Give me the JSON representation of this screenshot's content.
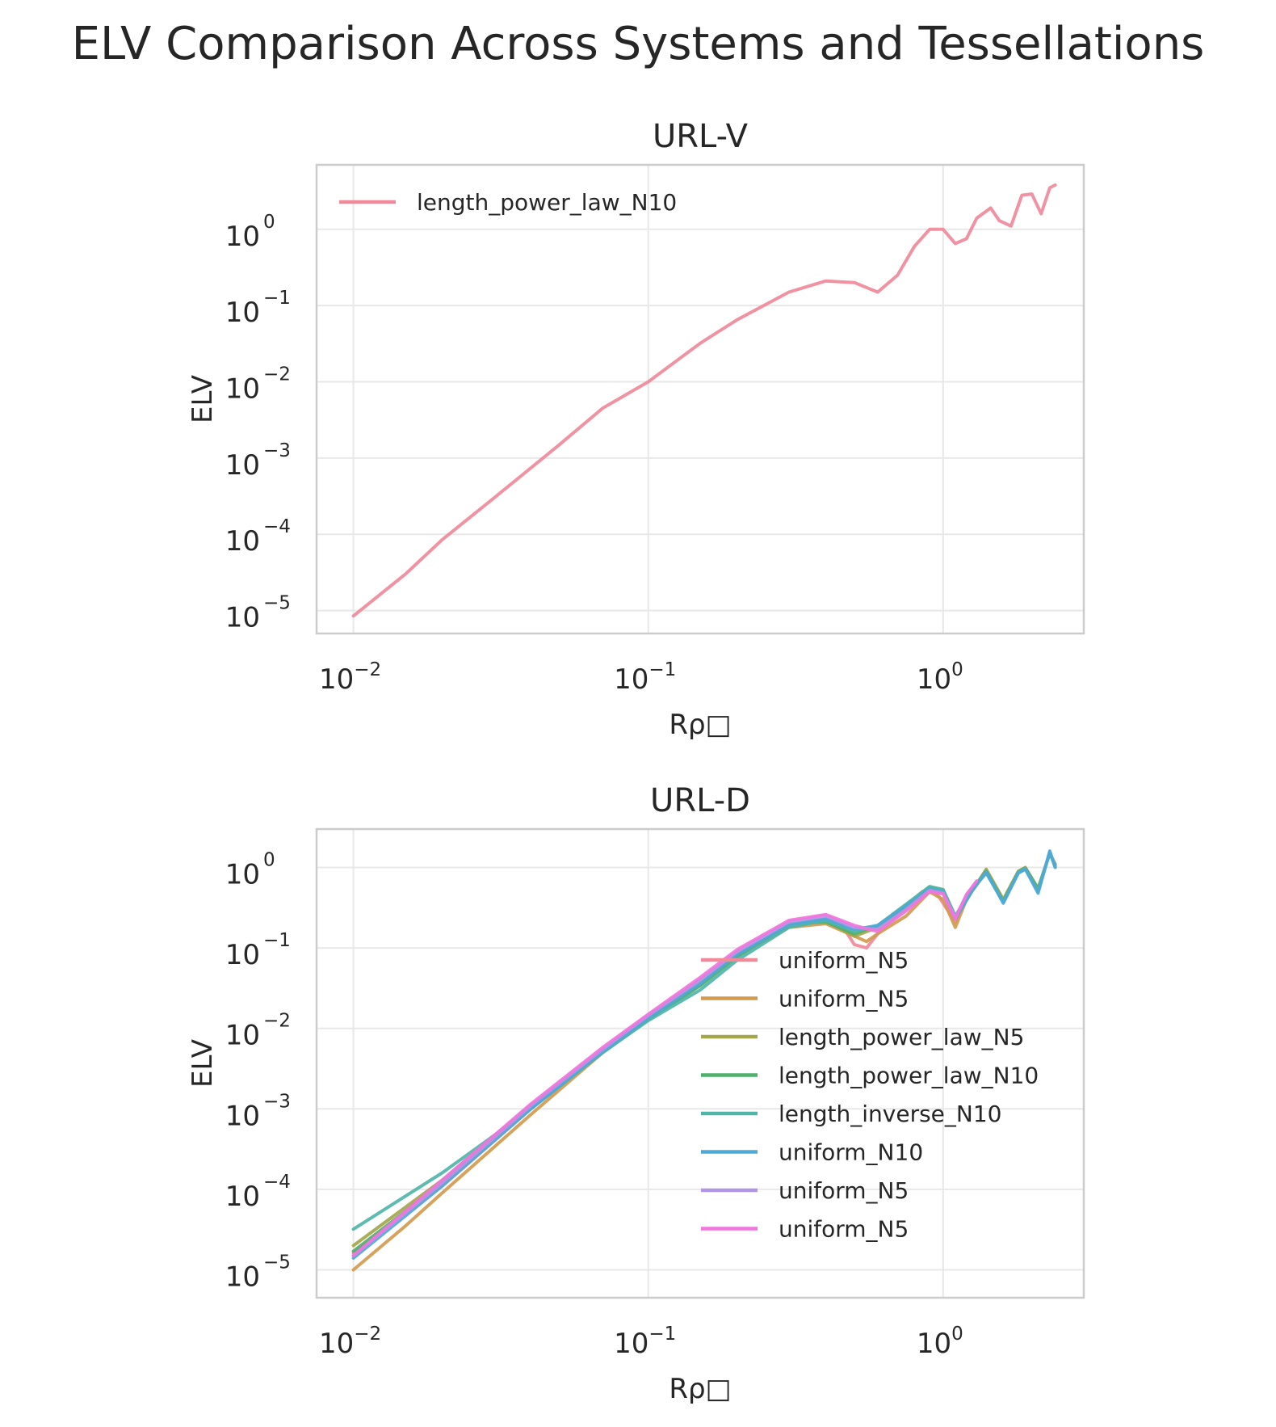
{
  "title": "ELV Comparison Across Systems and Tessellations",
  "chart_data": [
    {
      "type": "line",
      "title": "URL-V",
      "xlabel": "Rρ□",
      "ylabel": "ELV",
      "xscale": "log",
      "yscale": "log",
      "xlim": [
        0.0075,
        3.0
      ],
      "ylim": [
        5e-06,
        7
      ],
      "x_ticks": [
        0.01,
        0.1,
        1
      ],
      "x_tick_labels": [
        {
          "base": "10",
          "exp": "−2"
        },
        {
          "base": "10",
          "exp": "−1"
        },
        {
          "base": "10",
          "exp": "0"
        }
      ],
      "y_ticks": [
        1e-05,
        0.0001,
        0.001,
        0.01,
        0.1,
        1
      ],
      "y_tick_labels": [
        {
          "base": "10",
          "exp": "−5"
        },
        {
          "base": "10",
          "exp": "−4"
        },
        {
          "base": "10",
          "exp": "−3"
        },
        {
          "base": "10",
          "exp": "−2"
        },
        {
          "base": "10",
          "exp": "−1"
        },
        {
          "base": "10",
          "exp": "0"
        }
      ],
      "grid": true,
      "legend_position": "top-left",
      "series": [
        {
          "name": "length_power_law_N10",
          "color": "#f0899a",
          "x": [
            0.01,
            0.015,
            0.02,
            0.03,
            0.05,
            0.07,
            0.1,
            0.15,
            0.2,
            0.3,
            0.4,
            0.5,
            0.6,
            0.7,
            0.8,
            0.9,
            1.0,
            1.1,
            1.2,
            1.3,
            1.45,
            1.55,
            1.7,
            1.85,
            2.0,
            2.15,
            2.3,
            2.4
          ],
          "y": [
            8.5e-06,
            3e-05,
            8.5e-05,
            0.0003,
            0.0015,
            0.0045,
            0.01,
            0.032,
            0.065,
            0.15,
            0.21,
            0.2,
            0.15,
            0.25,
            0.6,
            1.0,
            1.0,
            0.65,
            0.75,
            1.4,
            1.9,
            1.3,
            1.1,
            2.8,
            2.9,
            1.6,
            3.5,
            3.8
          ]
        }
      ]
    },
    {
      "type": "line",
      "title": "URL-D",
      "xlabel": "Rρ□",
      "ylabel": "ELV",
      "xscale": "log",
      "yscale": "log",
      "xlim": [
        0.0075,
        3.0
      ],
      "ylim": [
        4.5e-06,
        3
      ],
      "x_ticks": [
        0.01,
        0.1,
        1
      ],
      "x_tick_labels": [
        {
          "base": "10",
          "exp": "−2"
        },
        {
          "base": "10",
          "exp": "−1"
        },
        {
          "base": "10",
          "exp": "0"
        }
      ],
      "y_ticks": [
        1e-05,
        0.0001,
        0.001,
        0.01,
        0.1,
        1
      ],
      "y_tick_labels": [
        {
          "base": "10",
          "exp": "−5"
        },
        {
          "base": "10",
          "exp": "−4"
        },
        {
          "base": "10",
          "exp": "−3"
        },
        {
          "base": "10",
          "exp": "−2"
        },
        {
          "base": "10",
          "exp": "−1"
        },
        {
          "base": "10",
          "exp": "0"
        }
      ],
      "grid": true,
      "legend_position": "lower-right",
      "series": [
        {
          "name": "uniform_N5",
          "color": "#f0899a",
          "x": [
            0.01,
            0.02,
            0.04,
            0.07,
            0.1,
            0.15,
            0.2,
            0.3,
            0.4,
            0.45,
            0.5,
            0.55,
            0.6,
            0.7,
            0.85,
            0.95,
            1.1,
            1.2,
            1.3
          ],
          "y": [
            1.6e-05,
            0.00011,
            0.001,
            0.0055,
            0.014,
            0.04,
            0.085,
            0.19,
            0.23,
            0.2,
            0.11,
            0.1,
            0.15,
            0.26,
            0.5,
            0.48,
            0.21,
            0.45,
            0.65
          ]
        },
        {
          "name": "uniform_N5",
          "color": "#d39a4e",
          "x": [
            0.01,
            0.015,
            0.02,
            0.04,
            0.07,
            0.1,
            0.15,
            0.2,
            0.3,
            0.4,
            0.5,
            0.55,
            0.6,
            0.75,
            0.9,
            1.0,
            1.1,
            1.2
          ],
          "y": [
            1e-05,
            3.5e-05,
            9e-05,
            0.00085,
            0.005,
            0.013,
            0.035,
            0.08,
            0.18,
            0.2,
            0.14,
            0.12,
            0.15,
            0.25,
            0.5,
            0.4,
            0.18,
            0.4
          ]
        },
        {
          "name": "length_power_law_N5",
          "color": "#a3a74a",
          "x": [
            0.01,
            0.02,
            0.04,
            0.07,
            0.1,
            0.15,
            0.2,
            0.3,
            0.4,
            0.5,
            0.6,
            0.75,
            0.9,
            1.0,
            1.1,
            1.25,
            1.4,
            1.6,
            1.8,
            1.9,
            2.1,
            2.3,
            2.4
          ],
          "y": [
            2e-05,
            0.00013,
            0.0011,
            0.0052,
            0.013,
            0.035,
            0.08,
            0.19,
            0.22,
            0.14,
            0.18,
            0.32,
            0.55,
            0.5,
            0.23,
            0.5,
            0.95,
            0.4,
            0.9,
            1.0,
            0.55,
            1.5,
            1.1
          ]
        },
        {
          "name": "length_power_law_N10",
          "color": "#4fb06b",
          "x": [
            0.01,
            0.02,
            0.04,
            0.07,
            0.1,
            0.15,
            0.2,
            0.3,
            0.4,
            0.5,
            0.6,
            0.75,
            0.9,
            1.0,
            1.1,
            1.25,
            1.4,
            1.6,
            1.8,
            1.9,
            2.1,
            2.3,
            2.4
          ],
          "y": [
            1.7e-05,
            0.00012,
            0.0011,
            0.005,
            0.013,
            0.034,
            0.078,
            0.2,
            0.21,
            0.15,
            0.19,
            0.34,
            0.57,
            0.53,
            0.24,
            0.52,
            0.9,
            0.38,
            0.88,
            0.98,
            0.54,
            1.5,
            1.05
          ]
        },
        {
          "name": "length_inverse_N10",
          "color": "#4fb5a8",
          "x": [
            0.01,
            0.02,
            0.04,
            0.07,
            0.1,
            0.15,
            0.2,
            0.3,
            0.4,
            0.5,
            0.6,
            0.75,
            0.9,
            1.0,
            1.1,
            1.25,
            1.4,
            1.6,
            1.8,
            1.9,
            2.1,
            2.3,
            2.4
          ],
          "y": [
            3.2e-05,
            0.00016,
            0.001,
            0.005,
            0.0125,
            0.03,
            0.07,
            0.18,
            0.22,
            0.16,
            0.19,
            0.35,
            0.58,
            0.53,
            0.25,
            0.53,
            0.85,
            0.37,
            0.85,
            0.95,
            0.5,
            1.55,
            1.0
          ]
        },
        {
          "name": "uniform_N10",
          "color": "#4ea8d8",
          "x": [
            0.01,
            0.02,
            0.04,
            0.07,
            0.1,
            0.15,
            0.2,
            0.3,
            0.4,
            0.5,
            0.6,
            0.75,
            0.9,
            1.0,
            1.1,
            1.25,
            1.4,
            1.6,
            1.8,
            1.9,
            2.1,
            2.3,
            2.4
          ],
          "y": [
            1.4e-05,
            0.00011,
            0.001,
            0.0052,
            0.0135,
            0.036,
            0.082,
            0.195,
            0.23,
            0.17,
            0.19,
            0.33,
            0.54,
            0.5,
            0.23,
            0.5,
            0.88,
            0.36,
            0.86,
            0.96,
            0.48,
            1.6,
            1.0
          ]
        },
        {
          "name": "uniform_N5",
          "color": "#b196e8",
          "x": [
            0.01,
            0.02,
            0.04,
            0.07,
            0.1,
            0.15,
            0.2,
            0.3,
            0.4,
            0.5,
            0.6,
            0.75,
            0.9,
            1.0,
            1.1,
            1.2
          ],
          "y": [
            1.5e-05,
            0.00012,
            0.0011,
            0.0055,
            0.0145,
            0.04,
            0.09,
            0.21,
            0.25,
            0.18,
            0.17,
            0.3,
            0.52,
            0.48,
            0.24,
            0.45
          ]
        },
        {
          "name": "uniform_N5",
          "color": "#f075dc",
          "x": [
            0.01,
            0.02,
            0.04,
            0.07,
            0.1,
            0.15,
            0.2,
            0.3,
            0.4,
            0.5,
            0.6,
            0.75,
            0.9,
            1.0,
            1.1,
            1.2,
            1.3
          ],
          "y": [
            1.5e-05,
            0.00013,
            0.00115,
            0.0058,
            0.015,
            0.043,
            0.095,
            0.22,
            0.26,
            0.19,
            0.16,
            0.29,
            0.5,
            0.47,
            0.23,
            0.46,
            0.68
          ]
        }
      ]
    }
  ]
}
